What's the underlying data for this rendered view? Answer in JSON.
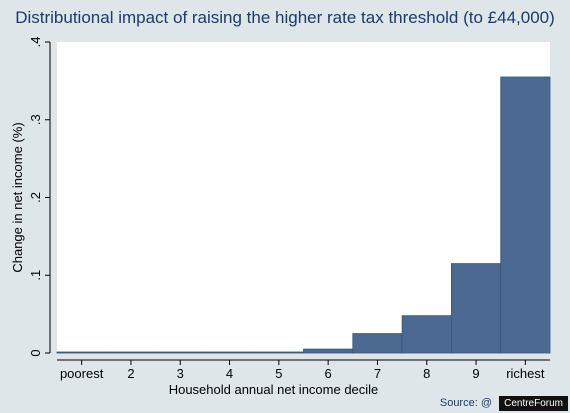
{
  "chart_data": {
    "type": "bar",
    "title": "Distributional impact of raising the higher rate tax threshold (to £44,000)",
    "xlabel": "Household annual net income decile",
    "ylabel": "Change in net income (%)",
    "categories": [
      "poorest",
      "2",
      "3",
      "4",
      "5",
      "6",
      "7",
      "8",
      "9",
      "richest"
    ],
    "values": [
      0.001,
      0.0,
      0.0,
      0.0,
      0.001,
      0.005,
      0.025,
      0.048,
      0.115,
      0.355
    ],
    "ylim": [
      0,
      0.4
    ],
    "yticks": [
      0,
      0.1,
      0.2,
      0.3,
      0.4
    ],
    "ytick_labels": [
      "0",
      ".1",
      ".2",
      ".3",
      ".4"
    ],
    "grid": false,
    "bar_color": "#4c6a91",
    "background": "#dfe6ea",
    "plot_background": "#ffffff"
  },
  "footer": {
    "source": "Source: @",
    "badge": "CentreForum"
  }
}
